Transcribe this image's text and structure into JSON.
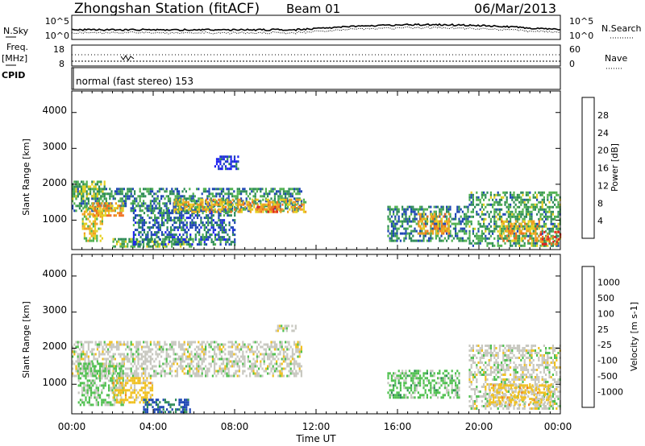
{
  "header": {
    "station": "Zhongshan Station (fitACF)",
    "beam": "Beam 01",
    "date": "06/Mar/2013"
  },
  "noise_panel": {
    "left_label": "N.Sky",
    "left_ticks": [
      "10^5",
      "10^0"
    ],
    "right_ticks": [
      "10^5",
      "10^0"
    ],
    "right_label": "N.Search"
  },
  "freq_panel": {
    "left_label_top": "Freq.",
    "left_label_bottom": "[MHz]",
    "left_ticks": [
      "18",
      "8"
    ],
    "right_ticks": [
      "60",
      "0"
    ],
    "right_label": "Nave"
  },
  "cpid_panel": {
    "label": "CPID",
    "text": "normal (fast stereo) 153"
  },
  "x_axis": {
    "ticks": [
      "00:00",
      "04:00",
      "08:00",
      "12:00",
      "16:00",
      "20:00",
      "00:00"
    ],
    "label": "Time UT"
  },
  "chart_data": [
    {
      "type": "heatmap",
      "name": "power",
      "ylabel": "Slant Range [km]",
      "yticks": [
        "1000",
        "2000",
        "3000",
        "4000"
      ],
      "ylim": [
        180,
        4600
      ],
      "xlim_hours": [
        0,
        24
      ],
      "colorbar": {
        "label": "Power [dB]",
        "ticks": [
          "4",
          "8",
          "12",
          "16",
          "20",
          "24",
          "28"
        ],
        "range": [
          0,
          32
        ],
        "colors": [
          "#1e22f0",
          "#1e46b4",
          "#2e8b57",
          "#50b050",
          "#e6d020",
          "#f0a020",
          "#f07020",
          "#e02020"
        ]
      },
      "regions": [
        {
          "t": [
            0.0,
            11.3
          ],
          "r": [
            1250,
            1900
          ],
          "level": 10
        },
        {
          "t": [
            0.0,
            1.6
          ],
          "r": [
            1600,
            2100
          ],
          "level": 14
        },
        {
          "t": [
            0.5,
            1.5
          ],
          "r": [
            400,
            1400
          ],
          "level": 18
        },
        {
          "t": [
            1.0,
            2.5
          ],
          "r": [
            1100,
            1500
          ],
          "level": 22
        },
        {
          "t": [
            2.0,
            6.0
          ],
          "r": [
            250,
            500
          ],
          "level": 14
        },
        {
          "t": [
            3.0,
            8.0
          ],
          "r": [
            300,
            1300
          ],
          "level": 8
        },
        {
          "t": [
            5.0,
            11.5
          ],
          "r": [
            1200,
            1600
          ],
          "level": 20
        },
        {
          "t": [
            9.0,
            10.3
          ],
          "r": [
            1200,
            1400
          ],
          "level": 26
        },
        {
          "t": [
            15.5,
            19.5
          ],
          "r": [
            400,
            1400
          ],
          "level": 10
        },
        {
          "t": [
            17.0,
            18.5
          ],
          "r": [
            600,
            1200
          ],
          "level": 22
        },
        {
          "t": [
            19.5,
            24.0
          ],
          "r": [
            300,
            1800
          ],
          "level": 12
        },
        {
          "t": [
            21.0,
            23.0
          ],
          "r": [
            400,
            1000
          ],
          "level": 22
        },
        {
          "t": [
            23.0,
            24.0
          ],
          "r": [
            300,
            700
          ],
          "level": 26
        },
        {
          "t": [
            7.0,
            8.2
          ],
          "r": [
            2400,
            2800
          ],
          "level": 4
        }
      ]
    },
    {
      "type": "heatmap",
      "name": "velocity",
      "ylabel": "Slant Range [km]",
      "yticks": [
        "1000",
        "2000",
        "3000",
        "4000"
      ],
      "ylim": [
        180,
        4600
      ],
      "xlim_hours": [
        0,
        24
      ],
      "colorbar": {
        "label": "Velocity [m s-1]",
        "ticks": [
          "1000",
          "500",
          "100",
          "25",
          "-25",
          "-100",
          "-500",
          "-1000"
        ],
        "range": [
          -1000,
          1000
        ],
        "colors": [
          "#1e22f0",
          "#1e46b4",
          "#2e8b57",
          "#50c050",
          "#c8c8c0",
          "#f0c020",
          "#f08020",
          "#f04020",
          "#e01010"
        ]
      },
      "regions": [
        {
          "t": [
            0.0,
            11.3
          ],
          "r": [
            1250,
            2200
          ],
          "level": 0
        },
        {
          "t": [
            0.3,
            2.5
          ],
          "r": [
            400,
            1600
          ],
          "level": -150
        },
        {
          "t": [
            2.0,
            4.0
          ],
          "r": [
            500,
            1200
          ],
          "level": 200
        },
        {
          "t": [
            3.5,
            5.8
          ],
          "r": [
            200,
            600
          ],
          "level": -600
        },
        {
          "t": [
            15.5,
            19.0
          ],
          "r": [
            600,
            1400
          ],
          "level": -200
        },
        {
          "t": [
            19.5,
            24.0
          ],
          "r": [
            300,
            2100
          ],
          "level": 0
        },
        {
          "t": [
            20.5,
            23.5
          ],
          "r": [
            400,
            1000
          ],
          "level": 200
        },
        {
          "t": [
            10.0,
            11.0
          ],
          "r": [
            2500,
            2650
          ],
          "level": 0
        }
      ]
    }
  ]
}
